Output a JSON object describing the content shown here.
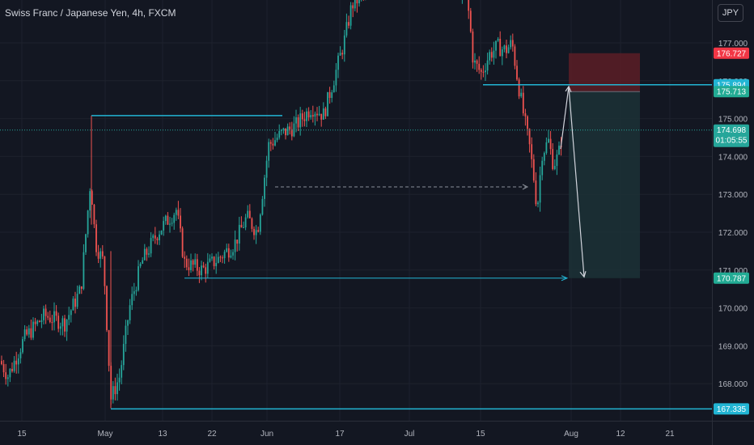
{
  "header": {
    "symbol_title": "Swiss Franc / Japanese Yen, 4h, FXCM",
    "currency_button": "JPY"
  },
  "colors": {
    "background": "#131722",
    "grid": "#1e222d",
    "up": "#26a69a",
    "down": "#ef5350",
    "level_line": "#22b5d4",
    "stop_zone": "#5c1d26",
    "target_zone": "#1c3035",
    "stop_label": "#f23645",
    "target_label": "#22ab94",
    "projection": "#d1d4dc"
  },
  "chart_data": {
    "type": "candlestick",
    "symbol": "Swiss Franc / Japanese Yen",
    "interval": "4h",
    "source": "FXCM",
    "x_ticks": [
      "15",
      "May",
      "13",
      "22",
      "Jun",
      "17",
      "Jul",
      "15",
      "Aug",
      "12",
      "21"
    ],
    "y_ticks": [
      "177.000",
      "176.000",
      "175.000",
      "174.000",
      "173.000",
      "172.000",
      "171.000",
      "170.000",
      "169.000",
      "168.000"
    ],
    "ylim": [
      167.0,
      178.2
    ],
    "price_tags": [
      {
        "value": "176.727",
        "role": "stop"
      },
      {
        "value": "175.894",
        "role": "level"
      },
      {
        "value": "175.713",
        "role": "entry"
      },
      {
        "value": "174.698",
        "role": "last",
        "countdown": "01:05:55"
      },
      {
        "value": "170.787",
        "role": "target"
      },
      {
        "value": "167.335",
        "role": "level"
      }
    ],
    "levels": [
      175.08,
      175.894,
      170.787,
      167.335
    ],
    "position": {
      "direction": "short",
      "entry": 175.713,
      "stop": 176.727,
      "target": 170.787
    },
    "ohlc_anchors": [
      [
        0,
        168.6
      ],
      [
        10,
        168.2
      ],
      [
        30,
        169.2
      ],
      [
        55,
        169.8
      ],
      [
        80,
        169.6
      ],
      [
        100,
        170.5
      ],
      [
        112,
        173.4
      ],
      [
        118,
        171.7
      ],
      [
        128,
        171.2
      ],
      [
        137,
        167.6
      ],
      [
        148,
        168.2
      ],
      [
        160,
        170.0
      ],
      [
        175,
        171.2
      ],
      [
        195,
        172.0
      ],
      [
        218,
        172.6
      ],
      [
        228,
        171.2
      ],
      [
        250,
        171.0
      ],
      [
        270,
        171.3
      ],
      [
        290,
        171.7
      ],
      [
        305,
        172.4
      ],
      [
        318,
        172.0
      ],
      [
        332,
        174.3
      ],
      [
        348,
        174.6
      ],
      [
        365,
        174.8
      ],
      [
        385,
        175.3
      ],
      [
        400,
        175.1
      ],
      [
        412,
        176.0
      ],
      [
        425,
        177.0
      ],
      [
        435,
        178.0
      ],
      [
        450,
        178.3
      ],
      [
        470,
        178.5
      ],
      [
        500,
        178.6
      ],
      [
        540,
        178.7
      ],
      [
        575,
        178.4
      ],
      [
        580,
        177.7
      ],
      [
        585,
        176.5
      ],
      [
        595,
        176.2
      ],
      [
        605,
        176.7
      ],
      [
        615,
        176.9
      ],
      [
        625,
        176.8
      ],
      [
        633,
        177.0
      ],
      [
        640,
        176.0
      ],
      [
        648,
        175.0
      ],
      [
        655,
        174.2
      ],
      [
        660,
        173.4
      ],
      [
        664,
        172.6
      ],
      [
        670,
        174.1
      ],
      [
        678,
        174.4
      ],
      [
        684,
        173.8
      ],
      [
        690,
        174.0
      ],
      [
        696,
        174.7
      ]
    ]
  }
}
